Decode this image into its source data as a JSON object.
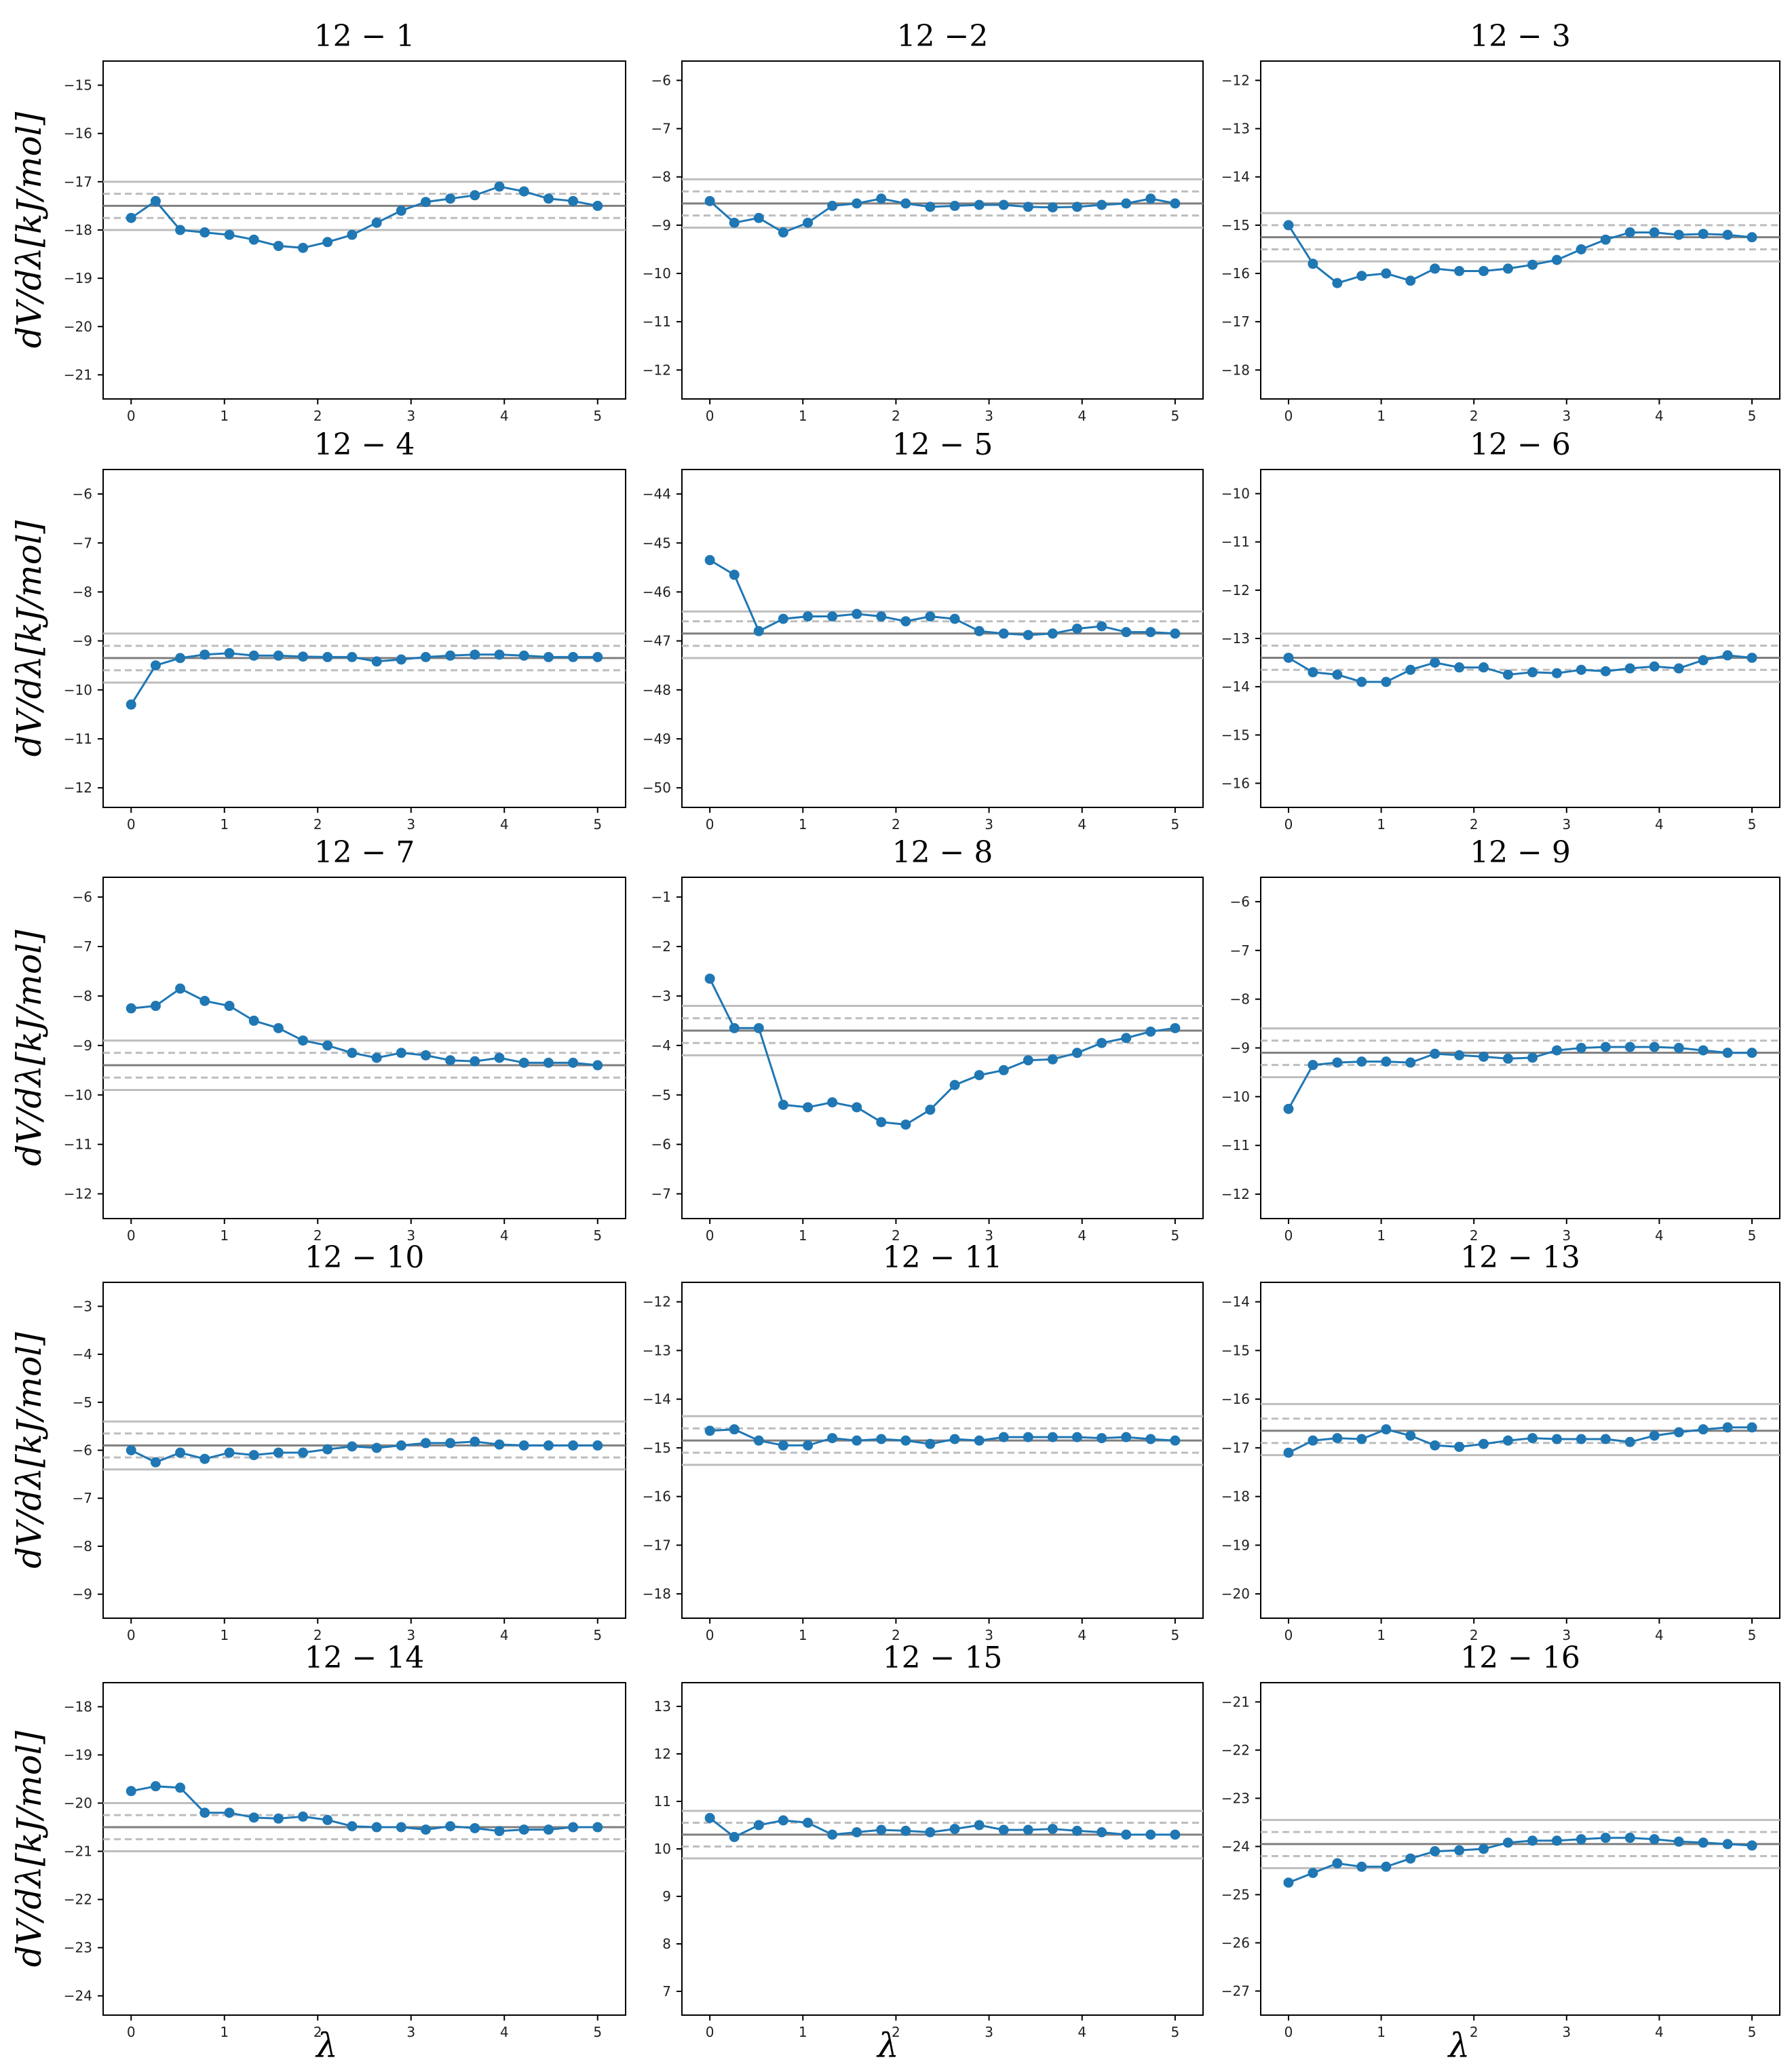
{
  "figure": {
    "ylabel": "dV/dλ[kJ/mol]",
    "xlabel": "λ"
  },
  "chart_data": [
    {
      "title": "12 − 1",
      "type": "line",
      "ylim": [
        -21.5,
        -14.5
      ],
      "yticks": [
        -21,
        -20,
        -19,
        -18,
        -17,
        -16,
        -15
      ],
      "xticks": [
        0,
        1,
        2,
        3,
        4,
        5
      ],
      "hlines": {
        "mean": -17.5,
        "dashed": [
          -17.25,
          -17.75
        ],
        "solid": [
          -17.0,
          -18.0
        ]
      },
      "x": [
        0,
        0.263,
        0.526,
        0.789,
        1.053,
        1.316,
        1.579,
        1.842,
        2.105,
        2.368,
        2.632,
        2.895,
        3.158,
        3.421,
        3.684,
        3.947,
        4.211,
        4.474,
        4.737,
        5.0
      ],
      "values": [
        -17.75,
        -17.4,
        -18.0,
        -18.05,
        -18.1,
        -18.2,
        -18.33,
        -18.37,
        -18.25,
        -18.1,
        -17.85,
        -17.6,
        -17.42,
        -17.35,
        -17.28,
        -17.1,
        -17.2,
        -17.35,
        -17.4,
        -17.5
      ]
    },
    {
      "title": "12 −2",
      "type": "line",
      "ylim": [
        -12.6,
        -5.6
      ],
      "yticks": [
        -12,
        -11,
        -10,
        -9,
        -8,
        -7,
        -6
      ],
      "xticks": [
        0,
        1,
        2,
        3,
        4,
        5
      ],
      "hlines": {
        "mean": -8.55,
        "dashed": [
          -8.3,
          -8.8
        ],
        "solid": [
          -8.05,
          -9.05
        ]
      },
      "x": [
        0,
        0.263,
        0.526,
        0.789,
        1.053,
        1.316,
        1.579,
        1.842,
        2.105,
        2.368,
        2.632,
        2.895,
        3.158,
        3.421,
        3.684,
        3.947,
        4.211,
        4.474,
        4.737,
        5.0
      ],
      "values": [
        -8.5,
        -8.95,
        -8.85,
        -9.15,
        -8.95,
        -8.6,
        -8.55,
        -8.45,
        -8.55,
        -8.62,
        -8.6,
        -8.58,
        -8.58,
        -8.62,
        -8.63,
        -8.62,
        -8.58,
        -8.55,
        -8.45,
        -8.55
      ]
    },
    {
      "title": "12 − 3",
      "type": "line",
      "ylim": [
        -18.6,
        -11.6
      ],
      "yticks": [
        -18,
        -17,
        -16,
        -15,
        -14,
        -13,
        -12
      ],
      "xticks": [
        0,
        1,
        2,
        3,
        4,
        5
      ],
      "hlines": {
        "mean": -15.25,
        "dashed": [
          -15.0,
          -15.5
        ],
        "solid": [
          -14.75,
          -15.75
        ]
      },
      "x": [
        0,
        0.263,
        0.526,
        0.789,
        1.053,
        1.316,
        1.579,
        1.842,
        2.105,
        2.368,
        2.632,
        2.895,
        3.158,
        3.421,
        3.684,
        3.947,
        4.211,
        4.474,
        4.737,
        5.0
      ],
      "values": [
        -15.0,
        -15.8,
        -16.2,
        -16.05,
        -16.0,
        -16.15,
        -15.9,
        -15.95,
        -15.95,
        -15.9,
        -15.82,
        -15.72,
        -15.5,
        -15.3,
        -15.15,
        -15.15,
        -15.2,
        -15.18,
        -15.2,
        -15.25
      ]
    },
    {
      "title": "12 − 4",
      "type": "line",
      "ylim": [
        -12.4,
        -5.5
      ],
      "yticks": [
        -12,
        -11,
        -10,
        -9,
        -8,
        -7,
        -6
      ],
      "xticks": [
        0,
        1,
        2,
        3,
        4,
        5
      ],
      "hlines": {
        "mean": -9.35,
        "dashed": [
          -9.1,
          -9.6
        ],
        "solid": [
          -8.85,
          -9.85
        ]
      },
      "x": [
        0,
        0.263,
        0.526,
        0.789,
        1.053,
        1.316,
        1.579,
        1.842,
        2.105,
        2.368,
        2.632,
        2.895,
        3.158,
        3.421,
        3.684,
        3.947,
        4.211,
        4.474,
        4.737,
        5.0
      ],
      "values": [
        -10.3,
        -9.5,
        -9.35,
        -9.28,
        -9.25,
        -9.3,
        -9.3,
        -9.32,
        -9.33,
        -9.33,
        -9.42,
        -9.38,
        -9.33,
        -9.3,
        -9.28,
        -9.28,
        -9.3,
        -9.33,
        -9.33,
        -9.33
      ]
    },
    {
      "title": "12 − 5",
      "type": "line",
      "ylim": [
        -50.4,
        -43.5
      ],
      "yticks": [
        -50,
        -49,
        -48,
        -47,
        -46,
        -45,
        -44
      ],
      "xticks": [
        0,
        1,
        2,
        3,
        4,
        5
      ],
      "hlines": {
        "mean": -46.85,
        "dashed": [
          -46.6,
          -47.1
        ],
        "solid": [
          -46.4,
          -47.35
        ]
      },
      "x": [
        0,
        0.263,
        0.526,
        0.789,
        1.053,
        1.316,
        1.579,
        1.842,
        2.105,
        2.368,
        2.632,
        2.895,
        3.158,
        3.421,
        3.684,
        3.947,
        4.211,
        4.474,
        4.737,
        5.0
      ],
      "values": [
        -45.35,
        -45.65,
        -46.8,
        -46.55,
        -46.5,
        -46.5,
        -46.45,
        -46.5,
        -46.6,
        -46.5,
        -46.55,
        -46.8,
        -46.85,
        -46.88,
        -46.85,
        -46.75,
        -46.7,
        -46.82,
        -46.82,
        -46.85
      ]
    },
    {
      "title": "12 − 6",
      "type": "line",
      "ylim": [
        -16.5,
        -9.5
      ],
      "yticks": [
        -16,
        -15,
        -14,
        -13,
        -12,
        -11,
        -10
      ],
      "xticks": [
        0,
        1,
        2,
        3,
        4,
        5
      ],
      "hlines": {
        "mean": -13.4,
        "dashed": [
          -13.15,
          -13.65
        ],
        "solid": [
          -12.9,
          -13.9
        ]
      },
      "x": [
        0,
        0.263,
        0.526,
        0.789,
        1.053,
        1.316,
        1.579,
        1.842,
        2.105,
        2.368,
        2.632,
        2.895,
        3.158,
        3.421,
        3.684,
        3.947,
        4.211,
        4.474,
        4.737,
        5.0
      ],
      "values": [
        -13.4,
        -13.7,
        -13.75,
        -13.9,
        -13.9,
        -13.65,
        -13.5,
        -13.6,
        -13.6,
        -13.75,
        -13.7,
        -13.72,
        -13.65,
        -13.68,
        -13.62,
        -13.58,
        -13.62,
        -13.45,
        -13.35,
        -13.4
      ]
    },
    {
      "title": "12 − 7",
      "type": "line",
      "ylim": [
        -12.5,
        -5.6
      ],
      "yticks": [
        -12,
        -11,
        -10,
        -9,
        -8,
        -7,
        -6
      ],
      "xticks": [
        0,
        1,
        2,
        3,
        4,
        5
      ],
      "hlines": {
        "mean": -9.4,
        "dashed": [
          -9.15,
          -9.65
        ],
        "solid": [
          -8.9,
          -9.9
        ]
      },
      "x": [
        0,
        0.263,
        0.526,
        0.789,
        1.053,
        1.316,
        1.579,
        1.842,
        2.105,
        2.368,
        2.632,
        2.895,
        3.158,
        3.421,
        3.684,
        3.947,
        4.211,
        4.474,
        4.737,
        5.0
      ],
      "values": [
        -8.25,
        -8.2,
        -7.85,
        -8.1,
        -8.2,
        -8.5,
        -8.65,
        -8.9,
        -9.0,
        -9.15,
        -9.25,
        -9.15,
        -9.2,
        -9.3,
        -9.32,
        -9.25,
        -9.35,
        -9.35,
        -9.35,
        -9.4
      ]
    },
    {
      "title": "12 − 8",
      "type": "line",
      "ylim": [
        -7.5,
        -0.6
      ],
      "yticks": [
        -7,
        -6,
        -5,
        -4,
        -3,
        -2,
        -1
      ],
      "xticks": [
        0,
        1,
        2,
        3,
        4,
        5
      ],
      "hlines": {
        "mean": -3.7,
        "dashed": [
          -3.45,
          -3.95
        ],
        "solid": [
          -3.2,
          -4.2
        ]
      },
      "x": [
        0,
        0.263,
        0.526,
        0.789,
        1.053,
        1.316,
        1.579,
        1.842,
        2.105,
        2.368,
        2.632,
        2.895,
        3.158,
        3.421,
        3.684,
        3.947,
        4.211,
        4.474,
        4.737,
        5.0
      ],
      "values": [
        -2.65,
        -3.65,
        -3.65,
        -5.2,
        -5.25,
        -5.15,
        -5.25,
        -5.55,
        -5.6,
        -5.3,
        -4.8,
        -4.6,
        -4.5,
        -4.3,
        -4.28,
        -4.15,
        -3.95,
        -3.85,
        -3.72,
        -3.65
      ]
    },
    {
      "title": "12 − 9",
      "type": "line",
      "ylim": [
        -12.5,
        -5.5
      ],
      "yticks": [
        -12,
        -11,
        -10,
        -9,
        -8,
        -7,
        -6
      ],
      "xticks": [
        0,
        1,
        2,
        3,
        4,
        5
      ],
      "hlines": {
        "mean": -9.1,
        "dashed": [
          -8.85,
          -9.35
        ],
        "solid": [
          -8.6,
          -9.6
        ]
      },
      "x": [
        0,
        0.263,
        0.526,
        0.789,
        1.053,
        1.316,
        1.579,
        1.842,
        2.105,
        2.368,
        2.632,
        2.895,
        3.158,
        3.421,
        3.684,
        3.947,
        4.211,
        4.474,
        4.737,
        5.0
      ],
      "values": [
        -10.25,
        -9.35,
        -9.3,
        -9.28,
        -9.28,
        -9.3,
        -9.12,
        -9.15,
        -9.18,
        -9.22,
        -9.2,
        -9.05,
        -9.0,
        -8.98,
        -8.98,
        -8.98,
        -9.0,
        -9.05,
        -9.1,
        -9.1
      ]
    },
    {
      "title": "12 − 10",
      "type": "line",
      "ylim": [
        -9.5,
        -2.5
      ],
      "yticks": [
        -9,
        -8,
        -7,
        -6,
        -5,
        -4,
        -3
      ],
      "xticks": [
        0,
        1,
        2,
        3,
        4,
        5
      ],
      "hlines": {
        "mean": -5.9,
        "dashed": [
          -5.65,
          -6.15
        ],
        "solid": [
          -5.4,
          -6.4
        ]
      },
      "x": [
        0,
        0.263,
        0.526,
        0.789,
        1.053,
        1.316,
        1.579,
        1.842,
        2.105,
        2.368,
        2.632,
        2.895,
        3.158,
        3.421,
        3.684,
        3.947,
        4.211,
        4.474,
        4.737,
        5.0
      ],
      "values": [
        -6.0,
        -6.25,
        -6.05,
        -6.18,
        -6.05,
        -6.1,
        -6.05,
        -6.05,
        -5.98,
        -5.92,
        -5.95,
        -5.9,
        -5.85,
        -5.85,
        -5.82,
        -5.88,
        -5.9,
        -5.9,
        -5.9,
        -5.9
      ]
    },
    {
      "title": "12 − 11",
      "type": "line",
      "ylim": [
        -18.5,
        -11.6
      ],
      "yticks": [
        -18,
        -17,
        -16,
        -15,
        -14,
        -13,
        -12
      ],
      "xticks": [
        0,
        1,
        2,
        3,
        4,
        5
      ],
      "hlines": {
        "mean": -14.85,
        "dashed": [
          -14.6,
          -15.1
        ],
        "solid": [
          -14.35,
          -15.35
        ]
      },
      "x": [
        0,
        0.263,
        0.526,
        0.789,
        1.053,
        1.316,
        1.579,
        1.842,
        2.105,
        2.368,
        2.632,
        2.895,
        3.158,
        3.421,
        3.684,
        3.947,
        4.211,
        4.474,
        4.737,
        5.0
      ],
      "values": [
        -14.65,
        -14.62,
        -14.85,
        -14.95,
        -14.95,
        -14.8,
        -14.85,
        -14.82,
        -14.85,
        -14.92,
        -14.82,
        -14.85,
        -14.78,
        -14.78,
        -14.78,
        -14.78,
        -14.8,
        -14.78,
        -14.82,
        -14.85
      ]
    },
    {
      "title": "12 − 13",
      "type": "line",
      "ylim": [
        -20.5,
        -13.6
      ],
      "yticks": [
        -20,
        -19,
        -18,
        -17,
        -16,
        -15,
        -14
      ],
      "xticks": [
        0,
        1,
        2,
        3,
        4,
        5
      ],
      "hlines": {
        "mean": -16.65,
        "dashed": [
          -16.4,
          -16.9
        ],
        "solid": [
          -16.1,
          -17.15
        ]
      },
      "x": [
        0,
        0.263,
        0.526,
        0.789,
        1.053,
        1.316,
        1.579,
        1.842,
        2.105,
        2.368,
        2.632,
        2.895,
        3.158,
        3.421,
        3.684,
        3.947,
        4.211,
        4.474,
        4.737,
        5.0
      ],
      "values": [
        -17.1,
        -16.85,
        -16.8,
        -16.82,
        -16.62,
        -16.75,
        -16.95,
        -16.98,
        -16.92,
        -16.85,
        -16.8,
        -16.82,
        -16.82,
        -16.82,
        -16.88,
        -16.75,
        -16.68,
        -16.62,
        -16.58,
        -16.58
      ]
    },
    {
      "title": "12 − 14",
      "type": "line",
      "ylim": [
        -24.4,
        -17.5
      ],
      "yticks": [
        -24,
        -23,
        -22,
        -21,
        -20,
        -19,
        -18
      ],
      "xticks": [
        0,
        1,
        2,
        3,
        4,
        5
      ],
      "hlines": {
        "mean": -20.5,
        "dashed": [
          -20.25,
          -20.75
        ],
        "solid": [
          -20.0,
          -21.0
        ]
      },
      "x": [
        0,
        0.263,
        0.526,
        0.789,
        1.053,
        1.316,
        1.579,
        1.842,
        2.105,
        2.368,
        2.632,
        2.895,
        3.158,
        3.421,
        3.684,
        3.947,
        4.211,
        4.474,
        4.737,
        5.0
      ],
      "values": [
        -19.75,
        -19.65,
        -19.68,
        -20.2,
        -20.2,
        -20.3,
        -20.32,
        -20.28,
        -20.35,
        -20.48,
        -20.5,
        -20.5,
        -20.55,
        -20.48,
        -20.52,
        -20.58,
        -20.55,
        -20.55,
        -20.5,
        -20.5
      ]
    },
    {
      "title": "12 − 15",
      "type": "line",
      "ylim": [
        6.5,
        13.5
      ],
      "yticks": [
        7,
        8,
        9,
        10,
        11,
        12,
        13
      ],
      "xticks": [
        0,
        1,
        2,
        3,
        4,
        5
      ],
      "hlines": {
        "mean": 10.3,
        "dashed": [
          10.55,
          10.05
        ],
        "solid": [
          10.8,
          9.8
        ]
      },
      "x": [
        0,
        0.263,
        0.526,
        0.789,
        1.053,
        1.316,
        1.579,
        1.842,
        2.105,
        2.368,
        2.632,
        2.895,
        3.158,
        3.421,
        3.684,
        3.947,
        4.211,
        4.474,
        4.737,
        5.0
      ],
      "values": [
        10.65,
        10.25,
        10.5,
        10.6,
        10.55,
        10.3,
        10.35,
        10.4,
        10.38,
        10.35,
        10.42,
        10.5,
        10.4,
        10.4,
        10.42,
        10.38,
        10.35,
        10.3,
        10.3,
        10.3
      ]
    },
    {
      "title": "12 − 16",
      "type": "line",
      "ylim": [
        -27.5,
        -20.6
      ],
      "yticks": [
        -27,
        -26,
        -25,
        -24,
        -23,
        -22,
        -21
      ],
      "xticks": [
        0,
        1,
        2,
        3,
        4,
        5
      ],
      "hlines": {
        "mean": -23.95,
        "dashed": [
          -23.7,
          -24.2
        ],
        "solid": [
          -23.45,
          -24.45
        ]
      },
      "x": [
        0,
        0.263,
        0.526,
        0.789,
        1.053,
        1.316,
        1.579,
        1.842,
        2.105,
        2.368,
        2.632,
        2.895,
        3.158,
        3.421,
        3.684,
        3.947,
        4.211,
        4.474,
        4.737,
        5.0
      ],
      "values": [
        -24.75,
        -24.55,
        -24.35,
        -24.42,
        -24.42,
        -24.25,
        -24.1,
        -24.08,
        -24.05,
        -23.92,
        -23.88,
        -23.88,
        -23.85,
        -23.82,
        -23.82,
        -23.85,
        -23.9,
        -23.92,
        -23.95,
        -23.98
      ]
    }
  ]
}
